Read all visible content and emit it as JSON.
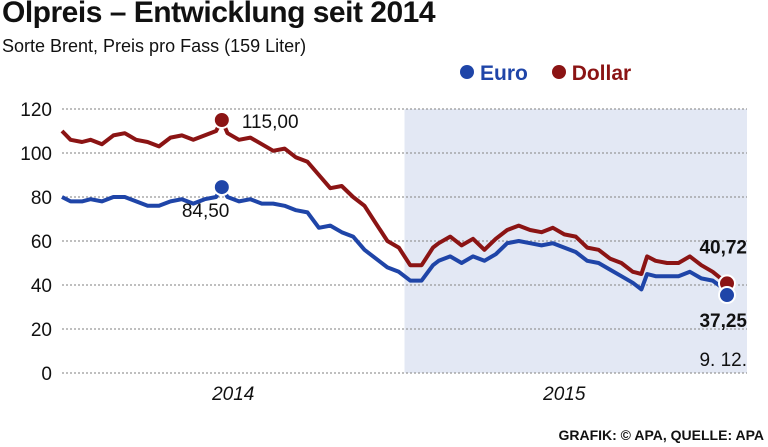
{
  "chart_data": {
    "type": "line",
    "title": "Ölpreis – Entwicklung seit 2014",
    "subtitle": "Sorte Brent, Preis pro Fass (159 Liter)",
    "source": "GRAFIK: © APA, QUELLE: APA",
    "ylim": [
      0,
      120
    ],
    "yticks": [
      0,
      20,
      40,
      60,
      80,
      100,
      120
    ],
    "ytick_labels": [
      "0",
      "20",
      "40",
      "60",
      "80",
      "100",
      "120"
    ],
    "xlabel_unit": "months since Jan 2014",
    "xlim": [
      0,
      23.3
    ],
    "x_categories": [
      {
        "label": "2014",
        "center": 6
      },
      {
        "label": "2015",
        "center": 17.6
      }
    ],
    "highlight_range": [
      12,
      24
    ],
    "grid": "horizontal dotted",
    "legend_position": "top-right",
    "colors": {
      "Euro": "#1f45a8",
      "Dollar": "#8b1414",
      "shade": "#e3e8f4"
    },
    "series": [
      {
        "name": "Dollar",
        "x": [
          0,
          0.3,
          0.7,
          1,
          1.4,
          1.8,
          2.2,
          2.6,
          3,
          3.4,
          3.8,
          4.2,
          4.6,
          5,
          5.4,
          5.6,
          5.8,
          6.2,
          6.6,
          7,
          7.4,
          7.8,
          8.2,
          8.6,
          9,
          9.4,
          9.8,
          10.2,
          10.6,
          11,
          11.4,
          11.8,
          12.2,
          12.6,
          13,
          13.2,
          13.6,
          14,
          14.4,
          14.8,
          15.2,
          15.6,
          16,
          16.4,
          16.8,
          17.2,
          17.6,
          18,
          18.4,
          18.8,
          19.2,
          19.6,
          20,
          20.3,
          20.5,
          20.8,
          21.2,
          21.6,
          22,
          22.4,
          22.8,
          23.3
        ],
        "y": [
          110,
          106,
          105,
          106,
          104,
          108,
          109,
          106,
          105,
          103,
          107,
          108,
          106,
          108,
          110,
          115,
          109,
          106,
          107,
          104,
          101,
          102,
          98,
          96,
          90,
          84,
          85,
          80,
          76,
          68,
          60,
          57,
          49,
          49,
          57,
          59,
          62,
          58,
          61,
          56,
          61,
          65,
          67,
          65,
          64,
          66,
          63,
          62,
          57,
          56,
          52,
          50,
          46,
          45,
          53,
          51,
          50,
          50,
          53,
          49,
          46,
          40.72
        ]
      },
      {
        "name": "Euro",
        "x": [
          0,
          0.3,
          0.7,
          1,
          1.4,
          1.8,
          2.2,
          2.6,
          3,
          3.4,
          3.8,
          4.2,
          4.6,
          5,
          5.4,
          5.6,
          5.8,
          6.2,
          6.6,
          7,
          7.4,
          7.8,
          8.2,
          8.6,
          9,
          9.4,
          9.8,
          10.2,
          10.6,
          11,
          11.4,
          11.8,
          12.2,
          12.6,
          13,
          13.2,
          13.6,
          14,
          14.4,
          14.8,
          15.2,
          15.6,
          16,
          16.4,
          16.8,
          17.2,
          17.6,
          18,
          18.4,
          18.8,
          19.2,
          19.6,
          20,
          20.3,
          20.5,
          20.8,
          21.2,
          21.6,
          22,
          22.4,
          22.8,
          23.3
        ],
        "y": [
          80,
          78,
          78,
          79,
          78,
          80,
          80,
          78,
          76,
          76,
          78,
          79,
          77,
          79,
          80,
          84.5,
          80,
          78,
          79,
          77,
          77,
          76,
          74,
          73,
          66,
          67,
          64,
          62,
          56,
          52,
          48,
          46,
          42,
          42,
          49,
          51,
          53,
          50,
          53,
          51,
          54,
          59,
          60,
          59,
          58,
          59,
          57,
          55,
          51,
          50,
          47,
          44,
          41,
          38,
          45,
          44,
          44,
          44,
          46,
          43,
          42,
          37.25
        ]
      }
    ],
    "annotations": [
      {
        "series": "Dollar",
        "x": 5.6,
        "y": 115,
        "label": "115,00"
      },
      {
        "series": "Euro",
        "x": 5.6,
        "y": 84.5,
        "label": "84,50"
      },
      {
        "series": "Dollar",
        "x": 23.3,
        "y": 40.72,
        "label": "40,72"
      },
      {
        "series": "Euro",
        "x": 23.3,
        "y": 37.25,
        "label": "37,25"
      }
    ],
    "end_date_label": "9. 12."
  }
}
